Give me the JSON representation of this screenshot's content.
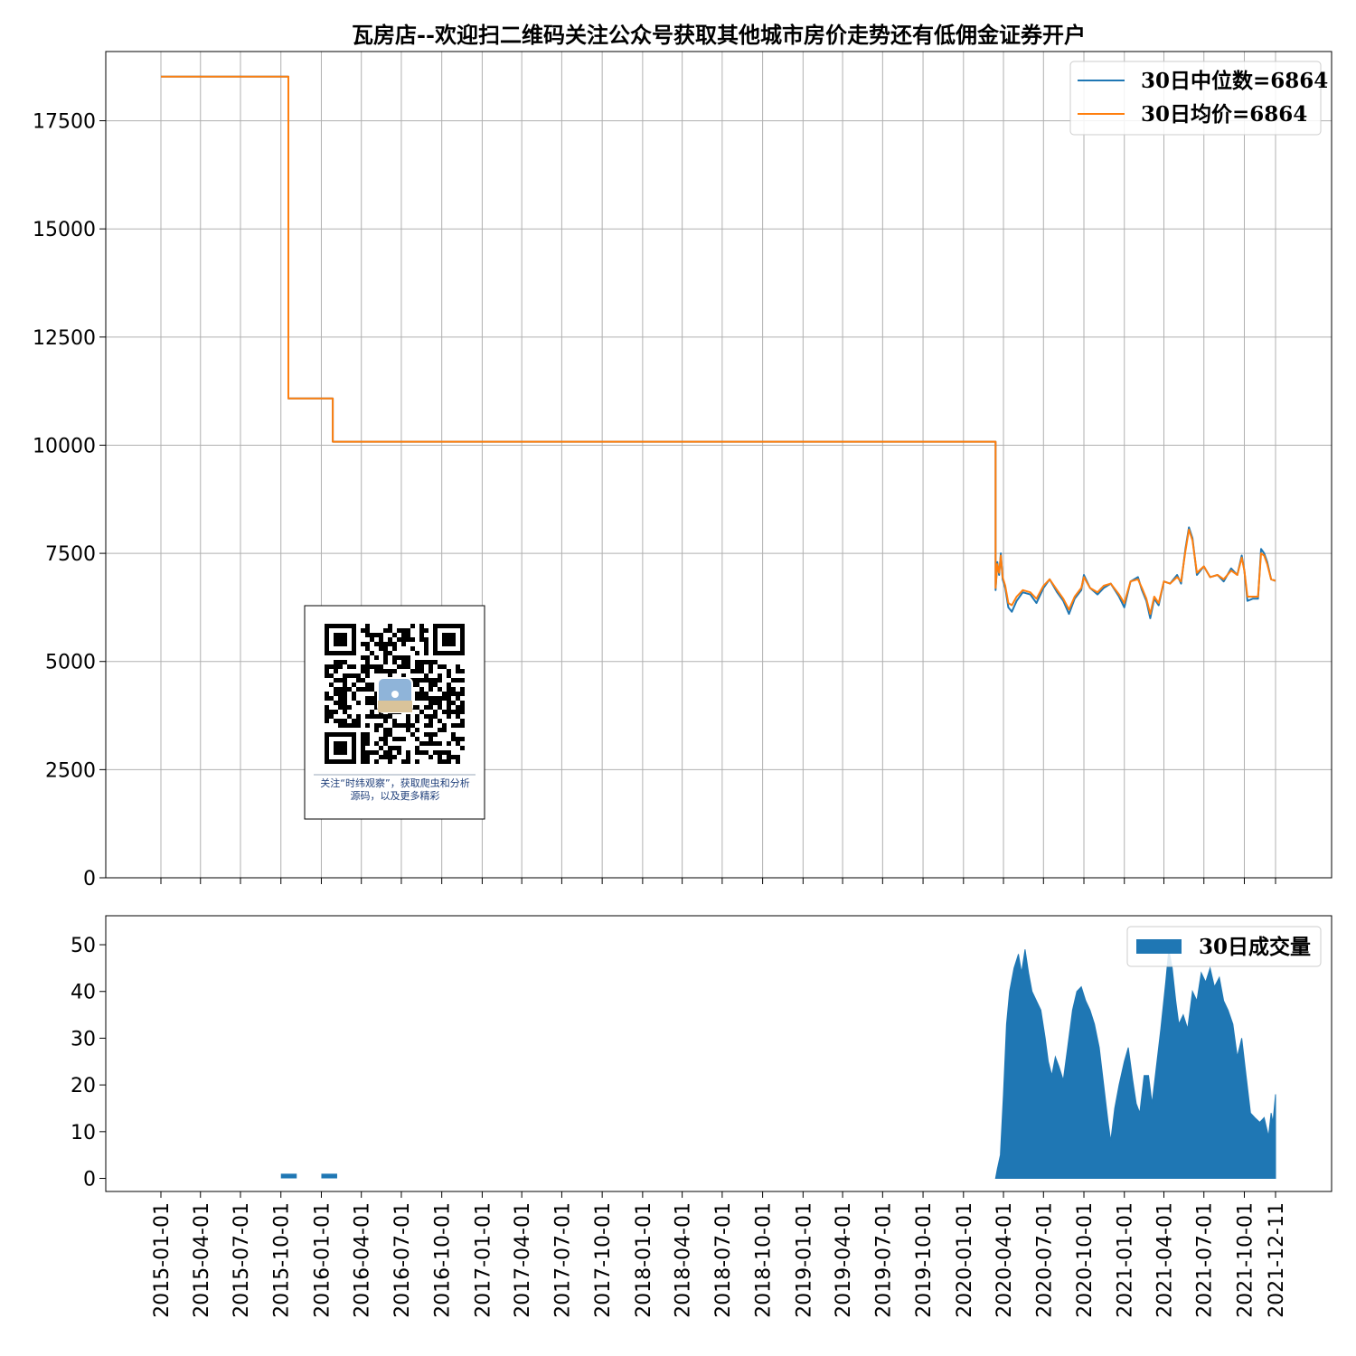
{
  "chart_data": [
    {
      "type": "line",
      "title": "瓦房店--欢迎扫二维码关注公众号获取其他城市房价走势还有低佣金证券开户",
      "xlabel": "",
      "ylabel": "",
      "ylim": [
        0,
        19100
      ],
      "yticks": [
        0,
        2500,
        5000,
        7500,
        10000,
        12500,
        15000,
        17500
      ],
      "grid": true,
      "legend_position": "top-right",
      "series": [
        {
          "name": "30日中位数=6864",
          "color": "#1f77b4",
          "points": [
            [
              "2015-01-01",
              18520
            ],
            [
              "2015-10-18",
              18520
            ],
            [
              "2015-10-18",
              11080
            ],
            [
              "2016-01-27",
              11080
            ],
            [
              "2016-01-27",
              10080
            ],
            [
              "2020-03-14",
              10080
            ],
            [
              "2020-03-14",
              6650
            ],
            [
              "2020-03-18",
              7300
            ],
            [
              "2020-03-22",
              7000
            ],
            [
              "2020-03-26",
              7500
            ],
            [
              "2020-03-30",
              6900
            ],
            [
              "2020-04-05",
              6700
            ],
            [
              "2020-04-12",
              6250
            ],
            [
              "2020-04-20",
              6150
            ],
            [
              "2020-05-01",
              6400
            ],
            [
              "2020-05-15",
              6600
            ],
            [
              "2020-06-01",
              6550
            ],
            [
              "2020-06-15",
              6350
            ],
            [
              "2020-07-01",
              6700
            ],
            [
              "2020-07-15",
              6900
            ],
            [
              "2020-08-01",
              6600
            ],
            [
              "2020-08-15",
              6400
            ],
            [
              "2020-08-28",
              6100
            ],
            [
              "2020-09-10",
              6450
            ],
            [
              "2020-09-25",
              6650
            ],
            [
              "2020-10-01",
              7000
            ],
            [
              "2020-10-15",
              6700
            ],
            [
              "2020-11-01",
              6550
            ],
            [
              "2020-11-15",
              6700
            ],
            [
              "2020-12-01",
              6800
            ],
            [
              "2020-12-20",
              6500
            ],
            [
              "2021-01-01",
              6250
            ],
            [
              "2021-01-15",
              6850
            ],
            [
              "2021-02-01",
              6950
            ],
            [
              "2021-02-10",
              6650
            ],
            [
              "2021-02-20",
              6400
            ],
            [
              "2021-03-01",
              6000
            ],
            [
              "2021-03-10",
              6450
            ],
            [
              "2021-03-20",
              6300
            ],
            [
              "2021-04-01",
              6850
            ],
            [
              "2021-04-15",
              6800
            ],
            [
              "2021-05-01",
              7000
            ],
            [
              "2021-05-10",
              6800
            ],
            [
              "2021-05-20",
              7600
            ],
            [
              "2021-05-28",
              8100
            ],
            [
              "2021-06-05",
              7850
            ],
            [
              "2021-06-15",
              7000
            ],
            [
              "2021-07-01",
              7200
            ],
            [
              "2021-07-15",
              6950
            ],
            [
              "2021-08-01",
              7000
            ],
            [
              "2021-08-15",
              6850
            ],
            [
              "2021-09-01",
              7150
            ],
            [
              "2021-09-15",
              7000
            ],
            [
              "2021-09-25",
              7450
            ],
            [
              "2021-10-01",
              7100
            ],
            [
              "2021-10-08",
              6400
            ],
            [
              "2021-10-20",
              6450
            ],
            [
              "2021-11-01",
              6450
            ],
            [
              "2021-11-08",
              7600
            ],
            [
              "2021-11-15",
              7500
            ],
            [
              "2021-11-22",
              7300
            ],
            [
              "2021-12-01",
              6900
            ],
            [
              "2021-12-11",
              6864
            ]
          ]
        },
        {
          "name": "30日均价=6864",
          "color": "#ff7f0e",
          "points": [
            [
              "2015-01-01",
              18520
            ],
            [
              "2015-10-18",
              18520
            ],
            [
              "2015-10-18",
              11080
            ],
            [
              "2016-01-27",
              11080
            ],
            [
              "2016-01-27",
              10080
            ],
            [
              "2020-03-14",
              10080
            ],
            [
              "2020-03-14",
              6700
            ],
            [
              "2020-03-18",
              7250
            ],
            [
              "2020-03-22",
              7050
            ],
            [
              "2020-03-26",
              7450
            ],
            [
              "2020-03-30",
              6950
            ],
            [
              "2020-04-05",
              6750
            ],
            [
              "2020-04-12",
              6350
            ],
            [
              "2020-04-20",
              6300
            ],
            [
              "2020-05-01",
              6500
            ],
            [
              "2020-05-15",
              6650
            ],
            [
              "2020-06-01",
              6600
            ],
            [
              "2020-06-15",
              6450
            ],
            [
              "2020-07-01",
              6750
            ],
            [
              "2020-07-15",
              6900
            ],
            [
              "2020-08-01",
              6650
            ],
            [
              "2020-08-15",
              6450
            ],
            [
              "2020-08-28",
              6200
            ],
            [
              "2020-09-10",
              6500
            ],
            [
              "2020-09-25",
              6700
            ],
            [
              "2020-10-01",
              6950
            ],
            [
              "2020-10-15",
              6700
            ],
            [
              "2020-11-01",
              6600
            ],
            [
              "2020-11-15",
              6750
            ],
            [
              "2020-12-01",
              6800
            ],
            [
              "2020-12-20",
              6550
            ],
            [
              "2021-01-01",
              6350
            ],
            [
              "2021-01-15",
              6850
            ],
            [
              "2021-02-01",
              6900
            ],
            [
              "2021-02-10",
              6700
            ],
            [
              "2021-02-20",
              6450
            ],
            [
              "2021-03-01",
              6100
            ],
            [
              "2021-03-10",
              6500
            ],
            [
              "2021-03-20",
              6350
            ],
            [
              "2021-04-01",
              6850
            ],
            [
              "2021-04-15",
              6800
            ],
            [
              "2021-05-01",
              6950
            ],
            [
              "2021-05-10",
              6850
            ],
            [
              "2021-05-20",
              7550
            ],
            [
              "2021-05-28",
              8050
            ],
            [
              "2021-06-05",
              7800
            ],
            [
              "2021-06-15",
              7050
            ],
            [
              "2021-07-01",
              7200
            ],
            [
              "2021-07-15",
              6950
            ],
            [
              "2021-08-01",
              7000
            ],
            [
              "2021-08-15",
              6900
            ],
            [
              "2021-09-01",
              7100
            ],
            [
              "2021-09-15",
              7000
            ],
            [
              "2021-09-25",
              7400
            ],
            [
              "2021-10-01",
              7100
            ],
            [
              "2021-10-08",
              6500
            ],
            [
              "2021-10-20",
              6500
            ],
            [
              "2021-11-01",
              6500
            ],
            [
              "2021-11-08",
              7500
            ],
            [
              "2021-11-15",
              7450
            ],
            [
              "2021-11-22",
              7250
            ],
            [
              "2021-12-01",
              6900
            ],
            [
              "2021-12-11",
              6864
            ]
          ]
        }
      ]
    },
    {
      "type": "area",
      "title": "",
      "xlabel": "",
      "ylabel": "",
      "ylim": [
        -2.8,
        56.2
      ],
      "yticks": [
        0,
        10,
        20,
        30,
        40,
        50
      ],
      "xticks": [
        "2015-01-01",
        "2015-04-01",
        "2015-07-01",
        "2015-10-01",
        "2016-01-01",
        "2016-04-01",
        "2016-07-01",
        "2016-10-01",
        "2017-01-01",
        "2017-04-01",
        "2017-07-01",
        "2017-10-01",
        "2018-01-01",
        "2018-04-01",
        "2018-07-01",
        "2018-10-01",
        "2019-01-01",
        "2019-04-01",
        "2019-07-01",
        "2019-10-01",
        "2020-01-01",
        "2020-04-01",
        "2020-07-01",
        "2020-10-01",
        "2021-01-01",
        "2021-04-01",
        "2021-07-01",
        "2021-10-01",
        "2021-12-11"
      ],
      "grid": false,
      "legend_position": "top-right",
      "series": [
        {
          "name": "30日成交量",
          "color": "#1f77b4",
          "bars": [
            {
              "start": "2015-10-01",
              "end": "2015-11-06",
              "value": 1
            },
            {
              "start": "2016-01-01",
              "end": "2016-02-06",
              "value": 1
            }
          ],
          "points": [
            [
              "2020-03-14",
              0
            ],
            [
              "2020-03-18",
              2
            ],
            [
              "2020-03-25",
              5
            ],
            [
              "2020-04-01",
              18
            ],
            [
              "2020-04-08",
              33
            ],
            [
              "2020-04-15",
              40
            ],
            [
              "2020-04-25",
              45
            ],
            [
              "2020-05-05",
              48
            ],
            [
              "2020-05-12",
              44
            ],
            [
              "2020-05-20",
              49
            ],
            [
              "2020-05-28",
              44
            ],
            [
              "2020-06-05",
              40
            ],
            [
              "2020-06-15",
              38
            ],
            [
              "2020-06-25",
              36
            ],
            [
              "2020-07-05",
              30
            ],
            [
              "2020-07-12",
              25
            ],
            [
              "2020-07-20",
              22
            ],
            [
              "2020-07-28",
              26
            ],
            [
              "2020-08-05",
              24
            ],
            [
              "2020-08-15",
              21
            ],
            [
              "2020-08-25",
              28
            ],
            [
              "2020-09-05",
              36
            ],
            [
              "2020-09-15",
              40
            ],
            [
              "2020-09-25",
              41
            ],
            [
              "2020-10-05",
              38
            ],
            [
              "2020-10-15",
              36
            ],
            [
              "2020-10-25",
              33
            ],
            [
              "2020-11-05",
              28
            ],
            [
              "2020-11-15",
              20
            ],
            [
              "2020-11-25",
              12
            ],
            [
              "2020-12-01",
              8
            ],
            [
              "2020-12-10",
              15
            ],
            [
              "2020-12-20",
              20
            ],
            [
              "2021-01-01",
              25
            ],
            [
              "2021-01-10",
              28
            ],
            [
              "2021-01-20",
              21
            ],
            [
              "2021-01-28",
              16
            ],
            [
              "2021-02-05",
              14
            ],
            [
              "2021-02-15",
              22
            ],
            [
              "2021-02-25",
              22
            ],
            [
              "2021-03-05",
              16
            ],
            [
              "2021-03-15",
              24
            ],
            [
              "2021-03-25",
              32
            ],
            [
              "2021-04-05",
              42
            ],
            [
              "2021-04-12",
              49
            ],
            [
              "2021-04-20",
              45
            ],
            [
              "2021-04-28",
              38
            ],
            [
              "2021-05-05",
              33
            ],
            [
              "2021-05-15",
              35
            ],
            [
              "2021-05-25",
              32
            ],
            [
              "2021-06-05",
              40
            ],
            [
              "2021-06-15",
              38
            ],
            [
              "2021-06-25",
              44
            ],
            [
              "2021-07-05",
              42
            ],
            [
              "2021-07-15",
              45
            ],
            [
              "2021-07-25",
              41
            ],
            [
              "2021-08-05",
              43
            ],
            [
              "2021-08-15",
              38
            ],
            [
              "2021-08-25",
              36
            ],
            [
              "2021-09-05",
              33
            ],
            [
              "2021-09-15",
              26
            ],
            [
              "2021-09-25",
              30
            ],
            [
              "2021-10-05",
              22
            ],
            [
              "2021-10-15",
              14
            ],
            [
              "2021-10-25",
              13
            ],
            [
              "2021-11-05",
              12
            ],
            [
              "2021-11-15",
              13
            ],
            [
              "2021-11-25",
              9
            ],
            [
              "2021-12-01",
              14
            ],
            [
              "2021-12-05",
              12
            ],
            [
              "2021-12-11",
              18
            ],
            [
              "2021-12-11",
              0
            ]
          ]
        }
      ]
    }
  ],
  "qr": {
    "caption_line1": "关注“时纬观察”，获取爬虫和分析",
    "caption_line2": "源码，以及更多精彩"
  }
}
